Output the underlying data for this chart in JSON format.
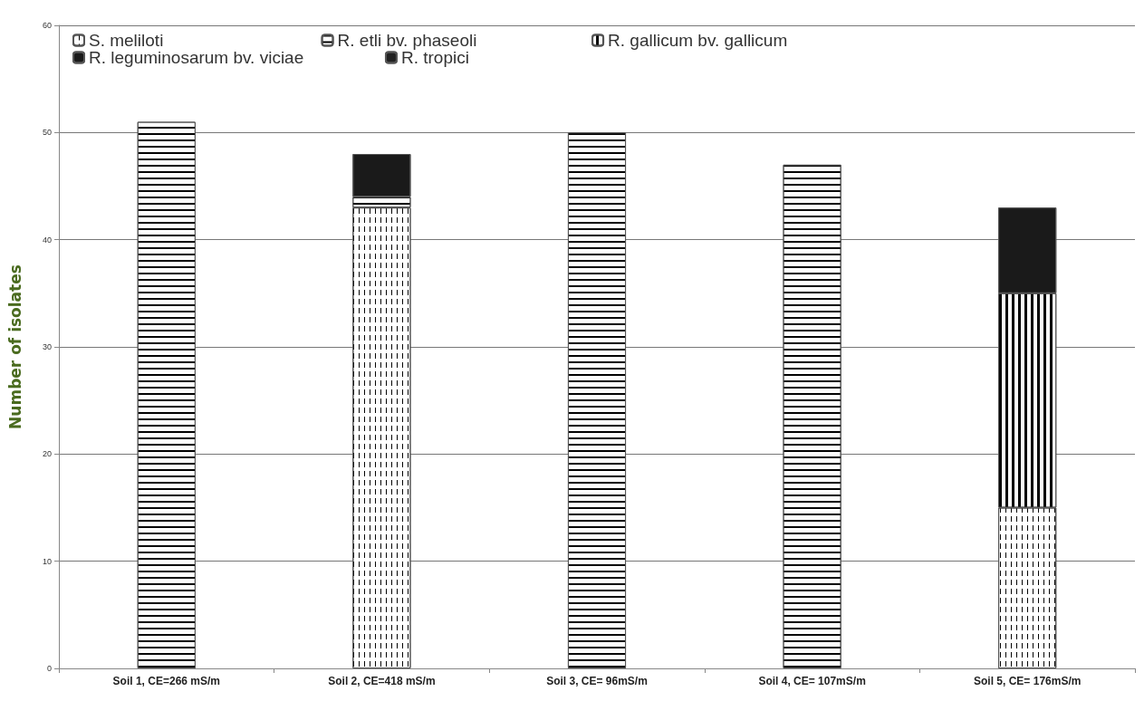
{
  "chart_data": {
    "type": "bar",
    "stacked": true,
    "ylabel": "Number of isolates",
    "categories": [
      "Soil 1, CE=266 mS/m",
      "Soil 2, CE=418 mS/m",
      "Soil 3, CE= 96mS/m",
      "Soil 4, CE= 107mS/m",
      "Soil 5, CE= 176mS/m"
    ],
    "series": [
      {
        "name": "S. meliloti",
        "color": "#ffffff",
        "values": [
          null,
          43,
          null,
          null,
          15
        ]
      },
      {
        "name": "R. etli bv. phaseoli",
        "color": "#ffffff",
        "values": [
          51,
          1,
          50,
          47,
          null
        ]
      },
      {
        "name": "R. gallicum bv. gallicum",
        "color": "#ffffff",
        "values": [
          null,
          null,
          null,
          null,
          20
        ]
      },
      {
        "name": "R. leguminosarum bv. viciae",
        "color": "#1a1a1a",
        "values": [
          null,
          4,
          null,
          null,
          8
        ]
      },
      {
        "name": "R. tropici",
        "color": "#222222",
        "values": [
          null,
          null,
          null,
          null,
          null
        ]
      }
    ],
    "ylim": [
      0,
      60
    ],
    "yticks": [
      0,
      10,
      20,
      30,
      40,
      50,
      60
    ],
    "grid": "y",
    "legend": "top"
  }
}
